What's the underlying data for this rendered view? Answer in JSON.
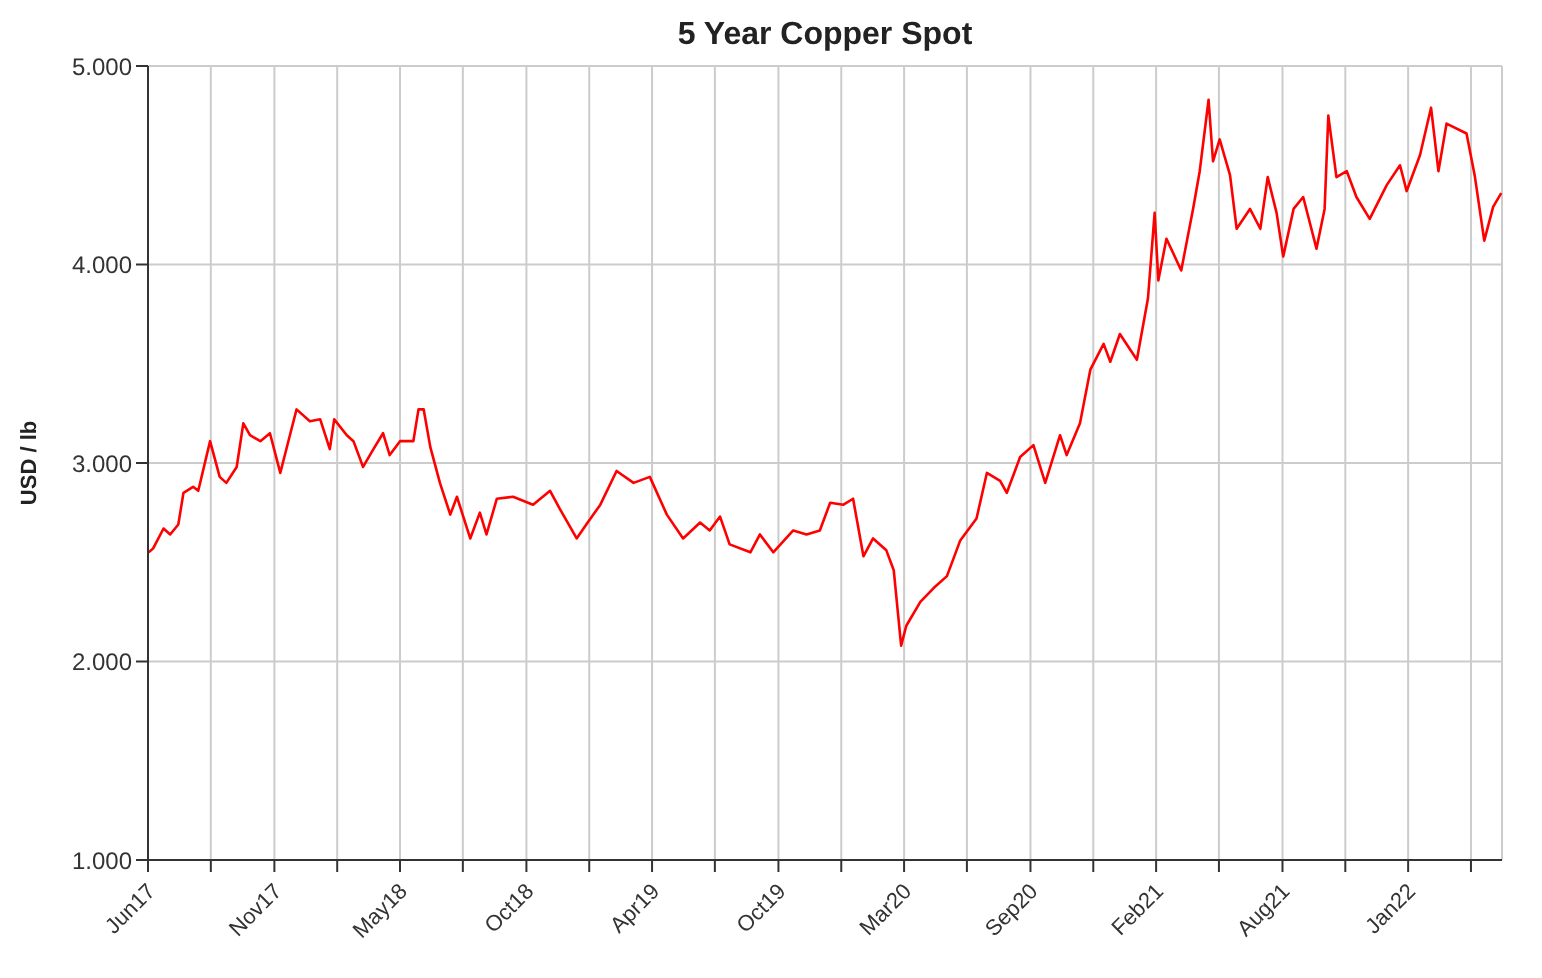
{
  "chart_data": {
    "type": "line",
    "title": "5 Year Copper Spot",
    "ylabel": "USD / lb",
    "xlim": [
      "2017-06-01",
      "2022-06-07"
    ],
    "xticks": [
      {
        "value": "2017-06-01",
        "label": "Jun17"
      },
      {
        "value": "2017-08-25",
        "label": null
      },
      {
        "value": "2017-11-19",
        "label": "Nov17"
      },
      {
        "value": "2018-02-12",
        "label": null
      },
      {
        "value": "2018-05-08",
        "label": "May18"
      },
      {
        "value": "2018-08-01",
        "label": null
      },
      {
        "value": "2018-10-26",
        "label": "Oct18"
      },
      {
        "value": "2019-01-19",
        "label": null
      },
      {
        "value": "2019-04-14",
        "label": "Apr19"
      },
      {
        "value": "2019-07-08",
        "label": null
      },
      {
        "value": "2019-10-02",
        "label": "Oct19"
      },
      {
        "value": "2019-12-26",
        "label": null
      },
      {
        "value": "2020-03-20",
        "label": "Mar20"
      },
      {
        "value": "2020-06-13",
        "label": null
      },
      {
        "value": "2020-09-07",
        "label": "Sep20"
      },
      {
        "value": "2020-12-01",
        "label": null
      },
      {
        "value": "2021-02-24",
        "label": "Feb21"
      },
      {
        "value": "2021-05-20",
        "label": null
      },
      {
        "value": "2021-08-14",
        "label": "Aug21"
      },
      {
        "value": "2021-11-07",
        "label": null
      },
      {
        "value": "2022-01-31",
        "label": "Jan22"
      },
      {
        "value": "2022-04-26",
        "label": null
      }
    ],
    "ylim": [
      1,
      5
    ],
    "yticks": [
      {
        "value": 1,
        "label": "1.000"
      },
      {
        "value": 2,
        "label": "2.000"
      },
      {
        "value": 3,
        "label": "3.000"
      },
      {
        "value": 4,
        "label": "4.000"
      },
      {
        "value": 5,
        "label": "5.000"
      }
    ],
    "grid": true,
    "x": [
      "2017-06-02",
      "2017-06-08",
      "2017-06-22",
      "2017-07-01",
      "2017-07-12",
      "2017-07-19",
      "2017-08-01",
      "2017-08-08",
      "2017-08-24",
      "2017-09-06",
      "2017-09-15",
      "2017-09-29",
      "2017-10-08",
      "2017-10-17",
      "2017-10-31",
      "2017-11-13",
      "2017-11-27",
      "2017-12-10",
      "2017-12-19",
      "2018-01-06",
      "2018-01-20",
      "2018-02-02",
      "2018-02-08",
      "2018-02-25",
      "2018-03-06",
      "2018-03-19",
      "2018-04-02",
      "2018-04-15",
      "2018-04-24",
      "2018-05-08",
      "2018-05-26",
      "2018-06-02",
      "2018-06-09",
      "2018-06-18",
      "2018-07-01",
      "2018-07-15",
      "2018-07-24",
      "2018-08-11",
      "2018-08-24",
      "2018-09-02",
      "2018-09-16",
      "2018-10-08",
      "2018-11-04",
      "2018-11-27",
      "2018-12-10",
      "2019-01-02",
      "2019-01-15",
      "2019-02-03",
      "2019-02-25",
      "2019-03-20",
      "2019-04-11",
      "2019-05-04",
      "2019-05-26",
      "2019-06-18",
      "2019-07-01",
      "2019-07-15",
      "2019-07-28",
      "2019-08-25",
      "2019-09-07",
      "2019-09-25",
      "2019-10-22",
      "2019-11-09",
      "2019-11-27",
      "2019-12-11",
      "2019-12-29",
      "2020-01-11",
      "2020-01-25",
      "2020-02-07",
      "2020-02-25",
      "2020-03-06",
      "2020-03-16",
      "2020-03-23",
      "2020-04-11",
      "2020-04-29",
      "2020-05-17",
      "2020-06-04",
      "2020-06-26",
      "2020-07-10",
      "2020-07-28",
      "2020-08-06",
      "2020-08-24",
      "2020-09-11",
      "2020-09-27",
      "2020-10-17",
      "2020-10-26",
      "2020-11-13",
      "2020-11-27",
      "2020-12-15",
      "2020-12-24",
      "2021-01-06",
      "2021-01-29",
      "2021-02-13",
      "2021-02-22",
      "2021-02-27",
      "2021-03-10",
      "2021-03-30",
      "2021-04-15",
      "2021-04-24",
      "2021-05-06",
      "2021-05-12",
      "2021-05-21",
      "2021-06-04",
      "2021-06-13",
      "2021-07-01",
      "2021-07-15",
      "2021-07-25",
      "2021-08-06",
      "2021-08-15",
      "2021-08-29",
      "2021-09-11",
      "2021-09-29",
      "2021-10-10",
      "2021-10-15",
      "2021-10-26",
      "2021-11-09",
      "2021-11-22",
      "2021-12-10",
      "2022-01-02",
      "2022-01-20",
      "2022-01-29",
      "2022-02-16",
      "2022-03-03",
      "2022-03-13",
      "2022-03-24",
      "2022-04-20",
      "2022-05-01",
      "2022-05-14",
      "2022-05-26",
      "2022-06-06"
    ],
    "series": [
      {
        "color": "#ff0000",
        "values": [
          2.55,
          2.57,
          2.67,
          2.64,
          2.69,
          2.85,
          2.88,
          2.86,
          3.11,
          2.93,
          2.9,
          2.98,
          3.2,
          3.14,
          3.11,
          3.15,
          2.95,
          3.14,
          3.27,
          3.21,
          3.22,
          3.07,
          3.22,
          3.14,
          3.11,
          2.98,
          3.07,
          3.15,
          3.04,
          3.11,
          3.11,
          3.27,
          3.27,
          3.08,
          2.9,
          2.74,
          2.83,
          2.62,
          2.75,
          2.64,
          2.82,
          2.83,
          2.79,
          2.86,
          2.77,
          2.62,
          2.69,
          2.79,
          2.96,
          2.9,
          2.93,
          2.74,
          2.62,
          2.7,
          2.66,
          2.73,
          2.59,
          2.55,
          2.64,
          2.55,
          2.66,
          2.64,
          2.66,
          2.8,
          2.79,
          2.82,
          2.53,
          2.62,
          2.56,
          2.46,
          2.08,
          2.18,
          2.3,
          2.37,
          2.43,
          2.61,
          2.72,
          2.95,
          2.91,
          2.85,
          3.03,
          3.09,
          2.9,
          3.14,
          3.04,
          3.2,
          3.47,
          3.6,
          3.51,
          3.65,
          3.52,
          3.83,
          4.26,
          3.92,
          4.13,
          3.97,
          4.28,
          4.47,
          4.83,
          4.52,
          4.63,
          4.45,
          4.18,
          4.28,
          4.18,
          4.44,
          4.26,
          4.04,
          4.28,
          4.34,
          4.08,
          4.28,
          4.75,
          4.44,
          4.47,
          4.34,
          4.23,
          4.4,
          4.5,
          4.37,
          4.55,
          4.79,
          4.47,
          4.71,
          4.66,
          4.45,
          4.12,
          4.29,
          4.36
        ]
      }
    ]
  }
}
